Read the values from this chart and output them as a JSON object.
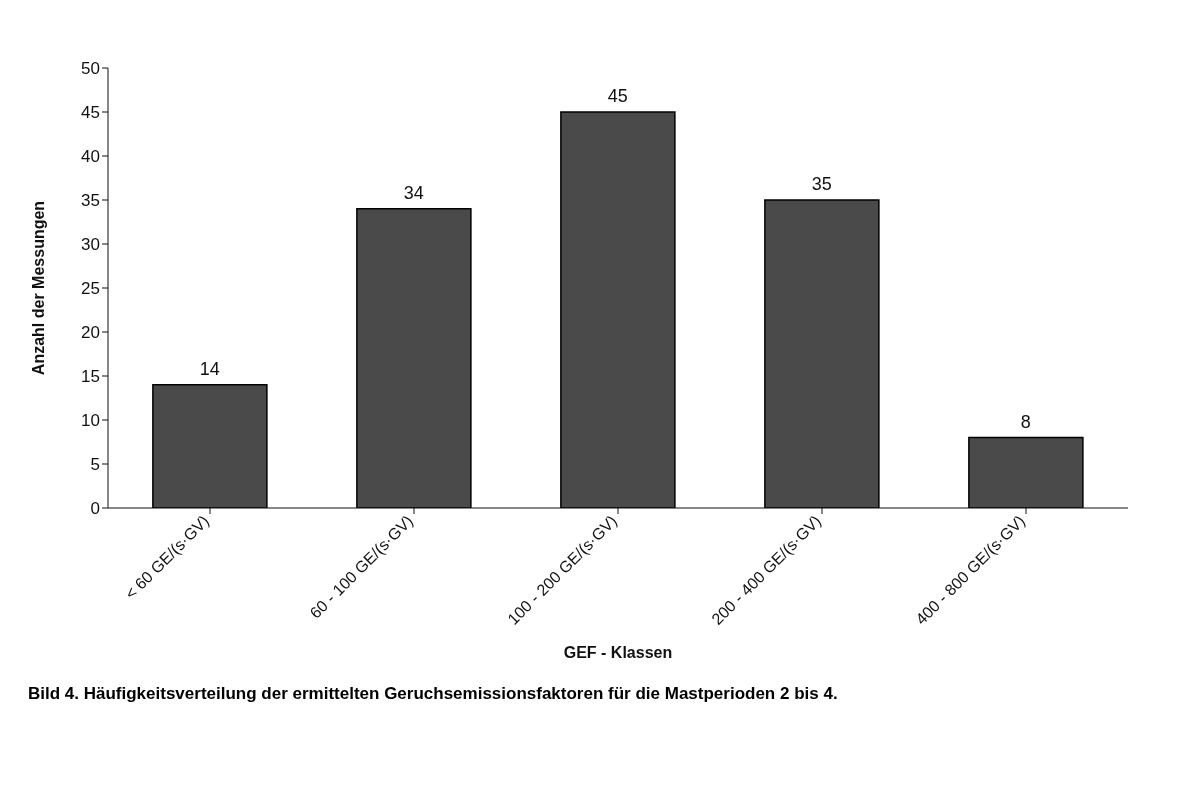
{
  "chart_data": {
    "type": "bar",
    "xlabel": "GEF - Klassen",
    "ylabel": "Anzahl der Messungen",
    "categories": [
      "< 60 GE/(s·GV)",
      "60 - 100 GE/(s·GV)",
      "100 - 200 GE/(s·GV)",
      "200 - 400 GE/(s·GV)",
      "400 - 800 GE/(s·GV)"
    ],
    "values": [
      14,
      34,
      45,
      35,
      8
    ],
    "color": "#4a4a4a",
    "ylim": [
      0,
      50
    ],
    "yticks": [
      0,
      5,
      10,
      15,
      20,
      25,
      30,
      35,
      40,
      45,
      50
    ],
    "grid": false,
    "data_labels": true,
    "annotations": [
      "Bild 4. Häufigkeitsverteilung der ermittelten Geruchsemissionsfaktoren für die Mastperioden 2 bis 4."
    ]
  }
}
